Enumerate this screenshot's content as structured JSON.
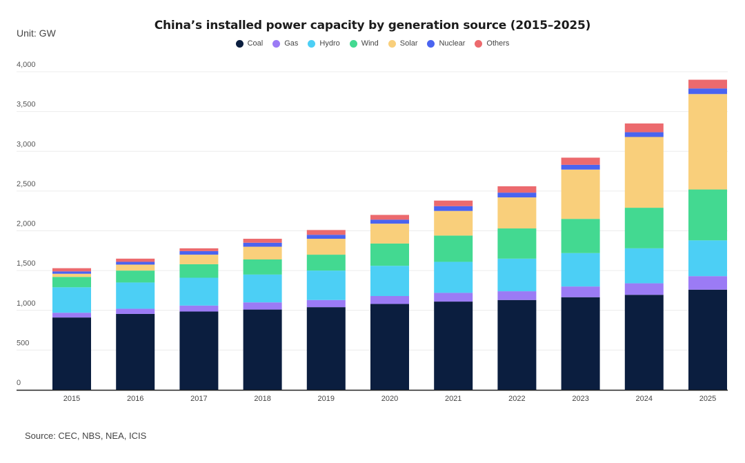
{
  "unit_label": "Unit: GW",
  "source": "Source: CEC, NBS, NEA, ICIS",
  "chart_data": {
    "type": "bar",
    "stacked": true,
    "title": "China’s installed power capacity by generation source (2015–2025)",
    "xlabel": "",
    "ylabel": "Unit: GW",
    "ylim": [
      0,
      4000
    ],
    "yticks": [
      0,
      500,
      1000,
      1500,
      2000,
      2500,
      3000,
      3500,
      4000
    ],
    "ytick_labels": [
      "0",
      "500",
      "1,000",
      "1,500",
      "2,000",
      "2,500",
      "3,000",
      "3,500",
      "4,000"
    ],
    "grid": true,
    "legend_position": "top-center",
    "categories": [
      "2015",
      "2016",
      "2017",
      "2018",
      "2019",
      "2020",
      "2021",
      "2022",
      "2023",
      "2024",
      "2025"
    ],
    "series": [
      {
        "name": "Coal",
        "color": "#0b1e3f",
        "values": [
          910,
          955,
          985,
          1010,
          1040,
          1080,
          1110,
          1130,
          1165,
          1195,
          1260
        ]
      },
      {
        "name": "Gas",
        "color": "#9b7bf5",
        "values": [
          60,
          65,
          75,
          90,
          90,
          100,
          110,
          110,
          135,
          145,
          170
        ]
      },
      {
        "name": "Hydro",
        "color": "#4ccff5",
        "values": [
          320,
          330,
          350,
          350,
          370,
          380,
          390,
          410,
          420,
          440,
          450
        ]
      },
      {
        "name": "Wind",
        "color": "#43d991",
        "values": [
          130,
          150,
          170,
          190,
          200,
          280,
          330,
          380,
          430,
          510,
          640
        ]
      },
      {
        "name": "Solar",
        "color": "#f9cf7b",
        "values": [
          40,
          75,
          120,
          160,
          200,
          250,
          310,
          390,
          620,
          890,
          1200
        ]
      },
      {
        "name": "Nuclear",
        "color": "#4a64f0",
        "values": [
          30,
          35,
          45,
          50,
          50,
          50,
          60,
          60,
          60,
          60,
          70
        ]
      },
      {
        "name": "Others",
        "color": "#ec6a6e",
        "values": [
          40,
          40,
          35,
          50,
          60,
          60,
          70,
          80,
          90,
          110,
          110
        ]
      }
    ]
  }
}
